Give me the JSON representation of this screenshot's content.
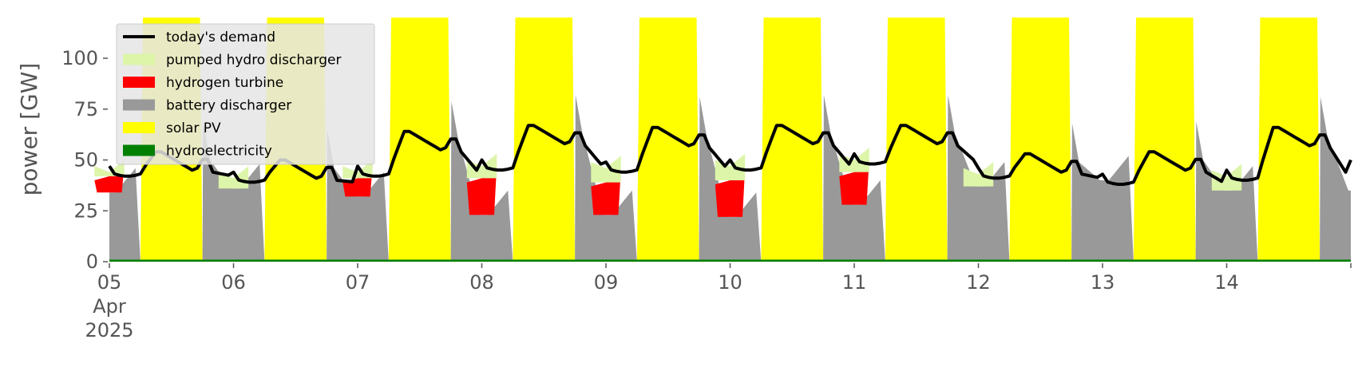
{
  "chart_data": {
    "type": "area",
    "ylabel": "power [GW]",
    "ylim": [
      0,
      120
    ],
    "y_ticks": [
      "0",
      "25",
      "50",
      "75",
      "100"
    ],
    "x_range_days": [
      "2025-04-05",
      "2025-04-15"
    ],
    "x_tick_labels": [
      "05",
      "06",
      "07",
      "08",
      "09",
      "10",
      "11",
      "12",
      "13",
      "14"
    ],
    "x_tick_sublabels": [
      "Apr",
      "2025"
    ],
    "grid": false,
    "legend_position": "top-left",
    "legend": [
      {
        "label": "today's demand",
        "color": "#000000",
        "kind": "line"
      },
      {
        "label": "pumped hydro discharger",
        "color": "#dcf5a8",
        "kind": "patch"
      },
      {
        "label": "hydrogen turbine",
        "color": "#ff0000",
        "kind": "patch"
      },
      {
        "label": "battery discharger",
        "color": "#999999",
        "kind": "patch"
      },
      {
        "label": "solar PV",
        "color": "#ffff00",
        "kind": "patch"
      },
      {
        "label": "hydroelectricity",
        "color": "#008000",
        "kind": "patch"
      }
    ],
    "days": [
      {
        "date": "2025-04-05",
        "night_demand": 44,
        "day_demand": 54,
        "hydrogen": 8,
        "pumped_hydro": 2
      },
      {
        "date": "2025-04-06",
        "night_demand": 41,
        "day_demand": 50,
        "hydrogen": 0,
        "pumped_hydro": 5
      },
      {
        "date": "2025-04-07",
        "night_demand": 44,
        "day_demand": 64,
        "hydrogen": 9,
        "pumped_hydro": 3
      },
      {
        "date": "2025-04-08",
        "night_demand": 47,
        "day_demand": 67,
        "hydrogen": 18,
        "pumped_hydro": 6
      },
      {
        "date": "2025-04-09",
        "night_demand": 46,
        "day_demand": 66,
        "hydrogen": 16,
        "pumped_hydro": 7
      },
      {
        "date": "2025-04-10",
        "night_demand": 47,
        "day_demand": 67,
        "hydrogen": 18,
        "pumped_hydro": 7
      },
      {
        "date": "2025-04-11",
        "night_demand": 50,
        "day_demand": 67,
        "hydrogen": 16,
        "pumped_hydro": 6
      },
      {
        "date": "2025-04-12",
        "night_demand": 43,
        "day_demand": 53,
        "hydrogen": 0,
        "pumped_hydro": 6
      },
      {
        "date": "2025-04-13",
        "night_demand": 40,
        "day_demand": 54,
        "hydrogen": 0,
        "pumped_hydro": 0
      },
      {
        "date": "2025-04-14",
        "night_demand": 42,
        "day_demand": 66,
        "hydrogen": 0,
        "pumped_hydro": 7
      }
    ],
    "hydroelectricity_gw": 1
  }
}
